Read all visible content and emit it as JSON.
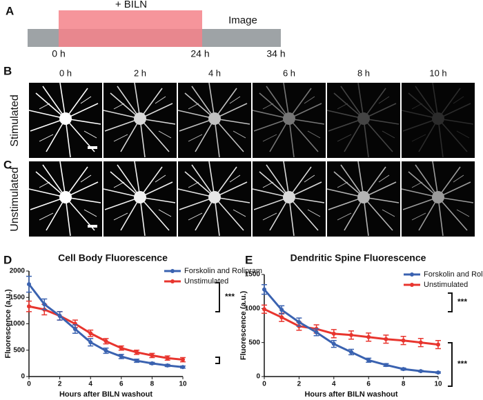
{
  "panel_a": {
    "label": "A",
    "treatment": "+ BILN",
    "imaging": "Image",
    "times": [
      "0 h",
      "24 h",
      "34 h"
    ]
  },
  "panel_b": {
    "label": "B",
    "row_label": "Stimulated",
    "times": [
      "0 h",
      "2 h",
      "4 h",
      "6 h",
      "8 h",
      "10 h"
    ]
  },
  "panel_c": {
    "label": "C",
    "row_label": "Unstimulated"
  },
  "chart_data": [
    {
      "panel_label": "D",
      "type": "line",
      "title": "Cell Body Fluorescence",
      "x_label": "Hours after BILN washout",
      "y_label": "Fluorescence (a.u.)",
      "x": [
        0,
        1,
        2,
        3,
        4,
        5,
        6,
        7,
        8,
        9,
        10
      ],
      "xlim": [
        0,
        10
      ],
      "xticks": [
        0,
        2,
        4,
        6,
        8,
        10
      ],
      "ylim": [
        0,
        2000
      ],
      "yticks": [
        0,
        500,
        1000,
        1500,
        2000
      ],
      "series": [
        {
          "name": "Forskolin and Rolipram",
          "color": "#3a62b0",
          "values": [
            1750,
            1370,
            1150,
            900,
            650,
            490,
            380,
            300,
            250,
            210,
            180
          ],
          "errors": [
            150,
            100,
            80,
            80,
            70,
            50,
            40,
            30,
            20,
            20,
            20
          ]
        },
        {
          "name": "Unstimulated",
          "color": "#e8352e",
          "values": [
            1330,
            1270,
            1150,
            1000,
            820,
            670,
            540,
            460,
            400,
            350,
            320
          ],
          "errors": [
            100,
            100,
            80,
            70,
            60,
            50,
            40,
            40,
            40,
            40,
            40
          ]
        }
      ],
      "annotations": [
        "***"
      ]
    },
    {
      "panel_label": "E",
      "type": "line",
      "title": "Dendritic Spine Fluorescence",
      "x_label": "Hours after BILN washout",
      "y_label": "Fluorescence (a.u.)",
      "x": [
        0,
        1,
        2,
        3,
        4,
        5,
        6,
        7,
        8,
        9,
        10
      ],
      "xlim": [
        0,
        10
      ],
      "xticks": [
        0,
        2,
        4,
        6,
        8,
        10
      ],
      "ylim": [
        0,
        1500
      ],
      "yticks": [
        0,
        500,
        1000,
        1500
      ],
      "series": [
        {
          "name": "Forskolin and Rolipram",
          "color": "#3a62b0",
          "values": [
            1280,
            980,
            800,
            650,
            480,
            360,
            240,
            170,
            110,
            80,
            60
          ],
          "errors": [
            70,
            60,
            60,
            50,
            50,
            40,
            30,
            20,
            15,
            10,
            10
          ]
        },
        {
          "name": "Unstimulated",
          "color": "#e8352e",
          "values": [
            990,
            870,
            740,
            700,
            630,
            610,
            580,
            550,
            530,
            500,
            470
          ],
          "errors": [
            60,
            60,
            60,
            60,
            60,
            60,
            60,
            60,
            60,
            60,
            60
          ]
        }
      ],
      "annotations": [
        "***",
        "***"
      ]
    }
  ]
}
